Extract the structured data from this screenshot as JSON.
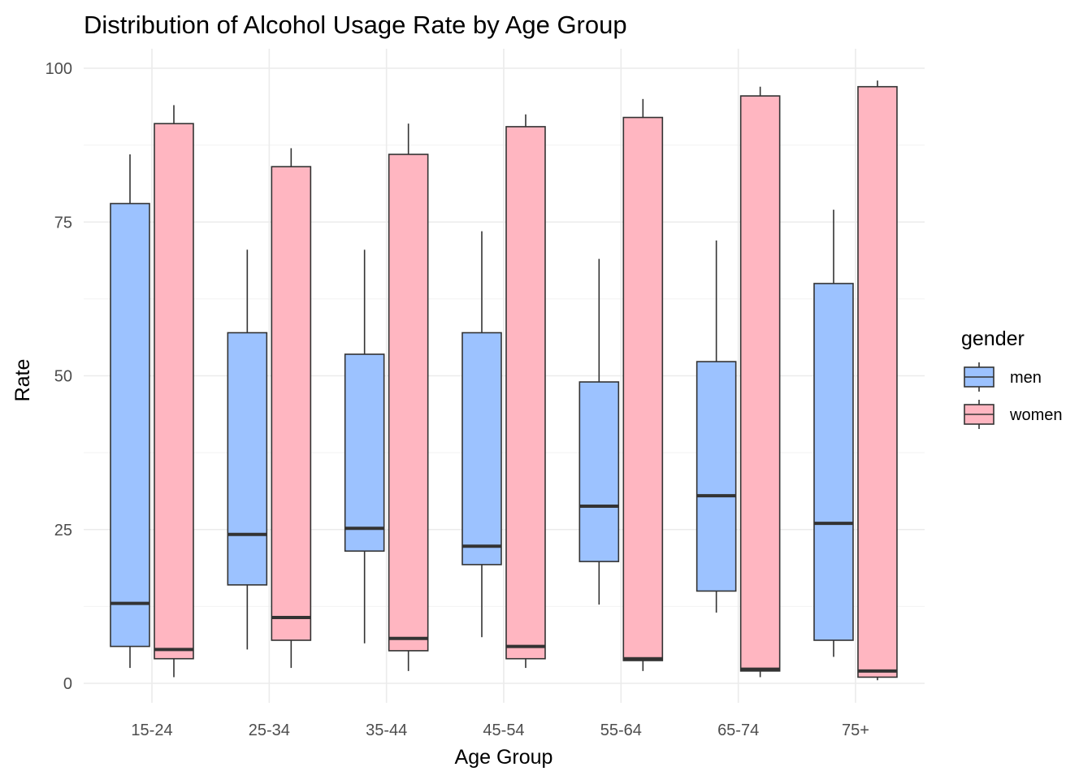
{
  "chart_data": {
    "type": "boxplot",
    "title": "Distribution of Alcohol Usage Rate by Age Group",
    "xlabel": "Age Group",
    "ylabel": "Rate",
    "ylim": [
      -3,
      104
    ],
    "y_ticks": [
      0,
      25,
      50,
      75,
      100
    ],
    "grid": true,
    "legend": {
      "title": "gender",
      "position": "right"
    },
    "categories": [
      "15-24",
      "25-34",
      "35-44",
      "45-54",
      "55-64",
      "65-74",
      "75+"
    ],
    "series": [
      {
        "name": "men",
        "color": "#9cc2ff",
        "boxes": [
          {
            "min": 2.5,
            "q1": 6.0,
            "median": 13.0,
            "q3": 78.0,
            "max": 86.0
          },
          {
            "min": 5.5,
            "q1": 16.0,
            "median": 24.2,
            "q3": 57.0,
            "max": 70.5
          },
          {
            "min": 6.5,
            "q1": 21.5,
            "median": 25.2,
            "q3": 53.5,
            "max": 70.5
          },
          {
            "min": 7.5,
            "q1": 19.3,
            "median": 22.3,
            "q3": 57.0,
            "max": 73.5
          },
          {
            "min": 12.8,
            "q1": 19.8,
            "median": 28.8,
            "q3": 49.0,
            "max": 69.0
          },
          {
            "min": 11.5,
            "q1": 15.0,
            "median": 30.5,
            "q3": 52.3,
            "max": 72.0
          },
          {
            "min": 4.3,
            "q1": 7.0,
            "median": 26.0,
            "q3": 65.0,
            "max": 77.0
          }
        ]
      },
      {
        "name": "women",
        "color": "#ffb6c1",
        "boxes": [
          {
            "min": 1.0,
            "q1": 4.0,
            "median": 5.5,
            "q3": 91.0,
            "max": 94.0
          },
          {
            "min": 2.5,
            "q1": 7.0,
            "median": 10.7,
            "q3": 84.0,
            "max": 87.0
          },
          {
            "min": 2.0,
            "q1": 5.3,
            "median": 7.3,
            "q3": 86.0,
            "max": 91.0
          },
          {
            "min": 2.5,
            "q1": 4.0,
            "median": 6.0,
            "q3": 90.5,
            "max": 92.5
          },
          {
            "min": 2.0,
            "q1": 3.7,
            "median": 4.0,
            "q3": 92.0,
            "max": 95.0
          },
          {
            "min": 1.0,
            "q1": 2.0,
            "median": 2.3,
            "q3": 95.5,
            "max": 97.0
          },
          {
            "min": 0.5,
            "q1": 1.0,
            "median": 2.0,
            "q3": 97.0,
            "max": 98.0
          }
        ]
      }
    ]
  }
}
